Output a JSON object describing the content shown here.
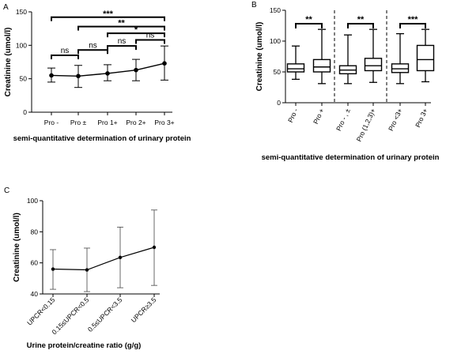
{
  "chart_data": [
    {
      "panel": "A",
      "type": "line",
      "ylabel": "Creatinine (umol/l)",
      "xlabel": "semi-quantitative determination of urinary protein",
      "ylim": [
        0,
        150
      ],
      "yticks": [
        0,
        50,
        100,
        150
      ],
      "categories": [
        "Pro -",
        "Pro ±",
        "Pro 1+",
        "Pro 2+",
        "Pro 3+"
      ],
      "values": [
        55,
        54,
        58,
        63,
        73
      ],
      "err_low": [
        45,
        37,
        47,
        47,
        48
      ],
      "err_high": [
        66,
        70,
        71,
        79,
        99
      ],
      "brackets": [
        {
          "from": 0,
          "to": 4,
          "label": "***",
          "y": 142
        },
        {
          "from": 1,
          "to": 4,
          "label": "**",
          "y": 128
        },
        {
          "from": 2,
          "to": 4,
          "label": "*",
          "y": 118
        },
        {
          "from": 3,
          "to": 4,
          "label": "ns",
          "y": 108
        },
        {
          "from": 2,
          "to": 3,
          "label": "ns",
          "y": 99
        },
        {
          "from": 1,
          "to": 2,
          "label": "ns",
          "y": 93
        },
        {
          "from": 0,
          "to": 1,
          "label": "ns",
          "y": 85
        }
      ]
    },
    {
      "panel": "B",
      "type": "box",
      "ylabel": "Creatinine (umol/l)",
      "xlabel": "semi-quantitative determination of urinary protein",
      "ylim": [
        0,
        150
      ],
      "yticks": [
        0,
        50,
        100,
        150
      ],
      "categories": [
        "Pro -",
        "Pro +",
        "Pro - , ±",
        "Pro (1,2,3)+",
        "Pro <3+",
        "Pro 3+"
      ],
      "boxes": [
        {
          "min": 38,
          "q1": 50,
          "median": 55,
          "q3": 63,
          "max": 92
        },
        {
          "min": 31,
          "q1": 50,
          "median": 58,
          "q3": 70,
          "max": 119
        },
        {
          "min": 31,
          "q1": 47,
          "median": 53,
          "q3": 60,
          "max": 110
        },
        {
          "min": 33,
          "q1": 52,
          "median": 60,
          "q3": 72,
          "max": 119
        },
        {
          "min": 31,
          "q1": 49,
          "median": 55,
          "q3": 63,
          "max": 112
        },
        {
          "min": 34,
          "q1": 52,
          "median": 70,
          "q3": 93,
          "max": 119
        }
      ],
      "brackets": [
        {
          "from": 0,
          "to": 1,
          "label": "**"
        },
        {
          "from": 2,
          "to": 3,
          "label": "**"
        },
        {
          "from": 4,
          "to": 5,
          "label": "***"
        }
      ]
    },
    {
      "panel": "C",
      "type": "line",
      "ylabel": "Creatinine (umol/l)",
      "xlabel": "Urine protein/creatine ratio (g/g)",
      "ylim": [
        40,
        100
      ],
      "yticks": [
        40,
        60,
        80,
        100
      ],
      "categories": [
        "UPCR<0.15",
        "0.15≤UPCR<0.5",
        "0.5≤UPCR<3.5",
        "UPCR≥3.5"
      ],
      "values": [
        56,
        55.5,
        63.5,
        70
      ],
      "err_low": [
        43,
        41.5,
        44,
        45.5
      ],
      "err_high": [
        68.5,
        69.5,
        83,
        94
      ]
    }
  ]
}
